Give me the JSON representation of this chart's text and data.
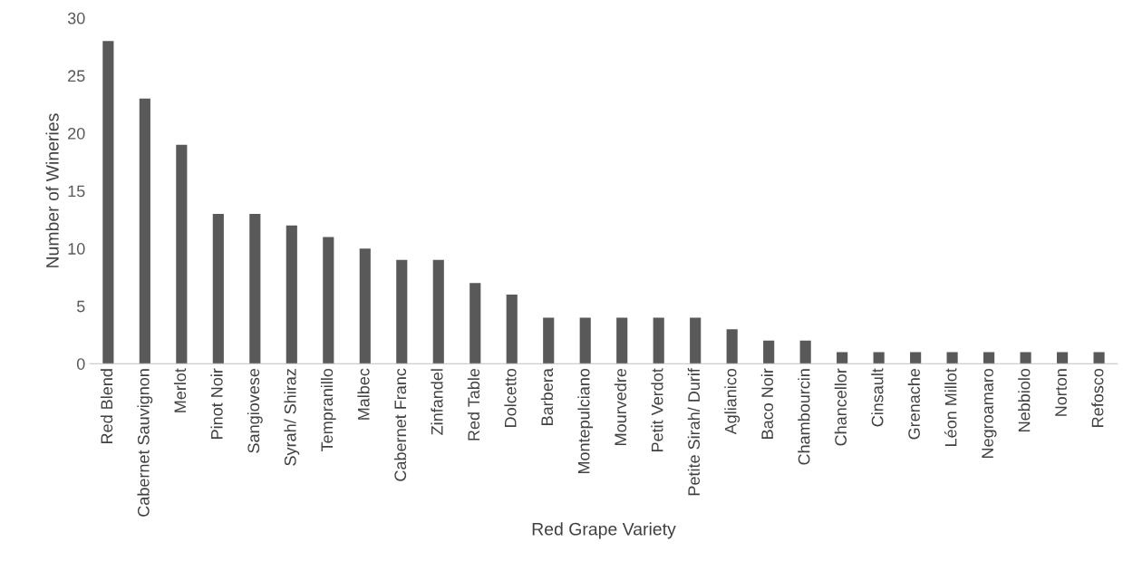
{
  "chart_data": {
    "type": "bar",
    "xlabel": "Red Grape Variety",
    "ylabel": "Number of Wineries",
    "categories": [
      "Red Blend",
      "Cabernet Sauvignon",
      "Merlot",
      "Pinot Noir",
      "Sangiovese",
      "Syrah/ Shiraz",
      "Tempranillo",
      "Malbec",
      "Cabernet Franc",
      "Zinfandel",
      "Red Table",
      "Dolcetto",
      "Barbera",
      "Montepulciano",
      "Mourvedre",
      "Petit Verdot",
      "Petite Sirah/ Durif",
      "Aglianico",
      "Baco Noir",
      "Chambourcin",
      "Chancellor",
      "Cinsault",
      "Grenache",
      "Léon Millot",
      "Negroamaro",
      "Nebbiolo",
      "Norton",
      "Refosco"
    ],
    "values": [
      28,
      23,
      19,
      13,
      13,
      12,
      11,
      10,
      9,
      9,
      7,
      6,
      4,
      4,
      4,
      4,
      4,
      3,
      2,
      2,
      1,
      1,
      1,
      1,
      1,
      1,
      1,
      1
    ],
    "color": "#595959",
    "ylim": [
      0,
      30
    ],
    "yticks": [
      0,
      5,
      10,
      15,
      20,
      25,
      30
    ],
    "grid": false,
    "legend": false
  }
}
